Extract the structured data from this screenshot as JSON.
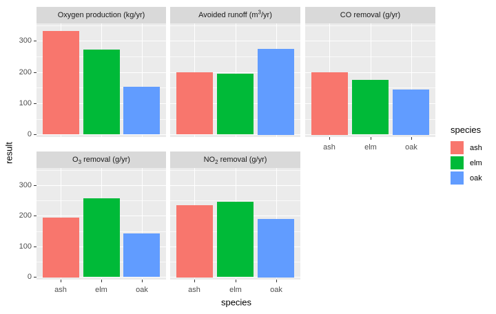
{
  "figure": {
    "y_axis_title": "result",
    "x_axis_title": "species",
    "panel_bg": "#EBEBEB",
    "strip_bg": "#D9D9D9",
    "gridline_color": "#FFFFFF",
    "tick_text_color": "#4D4D4D",
    "tick_mark_color": "#333333"
  },
  "legend": {
    "title": "species",
    "items": [
      {
        "label": "ash",
        "color": "#F8766D"
      },
      {
        "label": "elm",
        "color": "#00BA38"
      },
      {
        "label": "oak",
        "color": "#619CFF"
      }
    ]
  },
  "chart_data": {
    "type": "bar",
    "categories": [
      "ash",
      "elm",
      "oak"
    ],
    "xlabel": "species",
    "ylabel": "result",
    "y_ticks": [
      0,
      100,
      200,
      300
    ],
    "y_minor_ticks": [
      50,
      150,
      250,
      350
    ],
    "ylim": [
      0,
      356
    ],
    "grid": true,
    "legend_position": "right",
    "legend_title": "species",
    "series_colors": [
      "#F8766D",
      "#00BA38",
      "#619CFF"
    ],
    "facets": [
      {
        "title": "Oxygen production (kg/yr)",
        "title_parts": [
          {
            "s": "n",
            "t": "Oxygen production (kg/yr)"
          }
        ],
        "values": [
          331,
          272,
          152
        ]
      },
      {
        "title": "Avoided runoff (m3/yr)",
        "title_parts": [
          {
            "s": "n",
            "t": "Avoided runoff (m"
          },
          {
            "s": "sup",
            "t": "3"
          },
          {
            "s": "n",
            "t": "/yr)"
          }
        ],
        "values": [
          199,
          194,
          275
        ]
      },
      {
        "title": "CO removal (g/yr)",
        "title_parts": [
          {
            "s": "n",
            "t": "CO removal (g/yr)"
          }
        ],
        "values": [
          200,
          175,
          145
        ]
      },
      {
        "title": "O3 removal (g/yr)",
        "title_parts": [
          {
            "s": "n",
            "t": "O"
          },
          {
            "s": "sub",
            "t": "3"
          },
          {
            "s": "n",
            "t": " removal (g/yr)"
          }
        ],
        "values": [
          195,
          257,
          142
        ]
      },
      {
        "title": "NO2 removal (g/yr)",
        "title_parts": [
          {
            "s": "n",
            "t": "NO"
          },
          {
            "s": "sub",
            "t": "2"
          },
          {
            "s": "n",
            "t": " removal (g/yr)"
          }
        ],
        "values": [
          235,
          246,
          190
        ]
      }
    ]
  }
}
